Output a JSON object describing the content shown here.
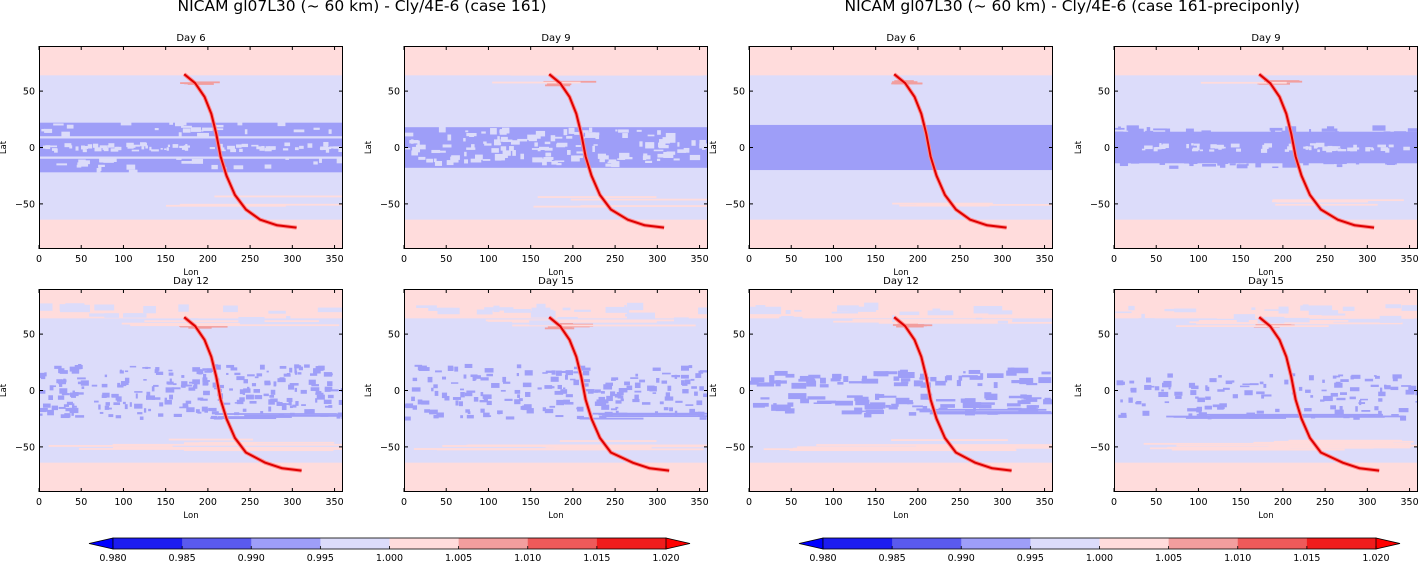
{
  "figures": [
    {
      "title": "NICAM gl07L30 (~ 60 km) - Cly/4E-6 (case 161)",
      "panels": [
        {
          "title": "Day 6",
          "variant": "a",
          "t": 0
        },
        {
          "title": "Day 9",
          "variant": "b",
          "t": 1
        },
        {
          "title": "Day 12",
          "variant": "c",
          "t": 2
        },
        {
          "title": "Day 15",
          "variant": "d",
          "t": 3
        }
      ]
    },
    {
      "title": "NICAM gl07L30 (~ 60 km) - Cly/4E-6 (case 161-preciponly)",
      "panels": [
        {
          "title": "Day 6",
          "variant": "e",
          "t": 0
        },
        {
          "title": "Day 9",
          "variant": "f",
          "t": 1
        },
        {
          "title": "Day 12",
          "variant": "g",
          "t": 2
        },
        {
          "title": "Day 15",
          "variant": "h",
          "t": 3
        }
      ]
    }
  ],
  "chart_data": {
    "type": "heatmap",
    "xlabel": "Lon",
    "ylabel": "Lat",
    "xlim": [
      0,
      360
    ],
    "ylim": [
      -90,
      90
    ],
    "xticks": [
      "0",
      "50",
      "100",
      "150",
      "200",
      "250",
      "300",
      "350"
    ],
    "yticks": [
      "50",
      "0",
      "−50"
    ],
    "xtick_values": [
      0,
      50,
      100,
      150,
      200,
      250,
      300,
      350
    ],
    "ytick_values": [
      50,
      0,
      -50
    ],
    "colorbar": {
      "levels": [
        0.98,
        0.985,
        0.99,
        0.995,
        1.0,
        1.005,
        1.01,
        1.015,
        1.02
      ],
      "labels": [
        "0.980",
        "0.985",
        "0.990",
        "0.995",
        "1.000",
        "1.005",
        "1.010",
        "1.015",
        "1.020"
      ],
      "colors": [
        "#1c1cf0",
        "#5a5aee",
        "#9e9ef8",
        "#dcdcfa",
        "#ffdcdc",
        "#f29e9e",
        "#ee5a5a",
        "#f01c1c"
      ],
      "under_color": "#0000ff",
      "over_color": "#ff0000",
      "extend": "both"
    },
    "tracer_curve": {
      "color": "#dd0000",
      "points": [
        [
          172,
          65
        ],
        [
          185,
          57
        ],
        [
          196,
          45
        ],
        [
          204,
          30
        ],
        [
          210,
          12
        ],
        [
          215,
          -8
        ],
        [
          222,
          -25
        ],
        [
          232,
          -42
        ],
        [
          245,
          -55
        ],
        [
          262,
          -64
        ],
        [
          282,
          -69
        ],
        [
          305,
          -71
        ]
      ]
    }
  }
}
